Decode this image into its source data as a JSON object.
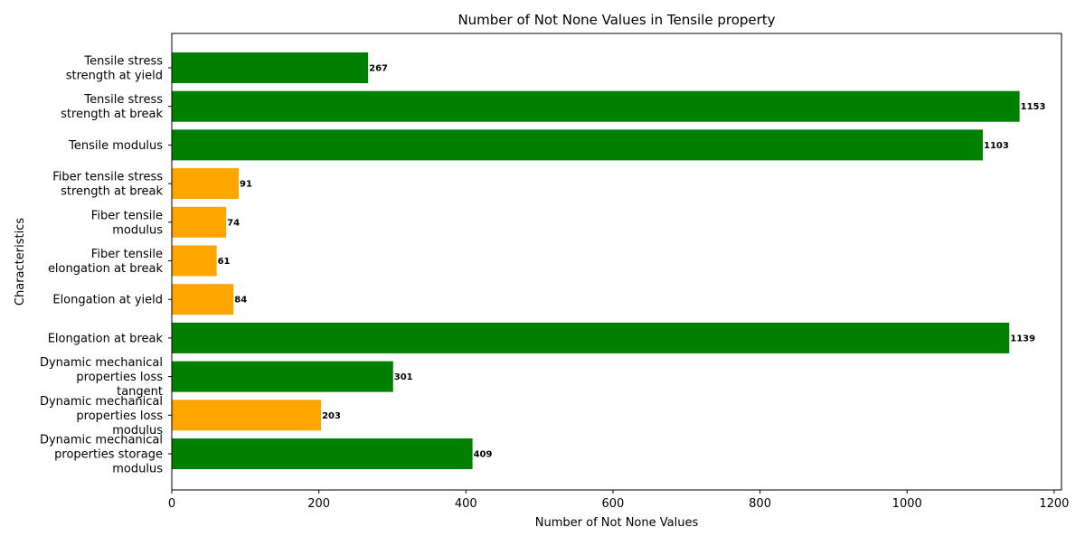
{
  "chart_data": {
    "type": "bar",
    "orientation": "horizontal",
    "title": "Number of Not None Values in Tensile property",
    "xlabel": "Number of Not None Values",
    "ylabel": "Characteristics",
    "xlim": [
      0,
      1210
    ],
    "x_ticks": [
      0,
      200,
      400,
      600,
      800,
      1000,
      1200
    ],
    "grid": false,
    "categories": [
      "Tensile stress\nstrength at yield",
      "Tensile stress\nstrength at break",
      "Tensile modulus",
      "Fiber tensile stress\nstrength at break",
      "Fiber tensile\nmodulus",
      "Fiber tensile\nelongation at break",
      "Elongation at yield",
      "Elongation at break",
      "Dynamic mechanical\nproperties loss\ntangent",
      "Dynamic mechanical\nproperties loss\nmodulus",
      "Dynamic mechanical\nproperties storage\nmodulus"
    ],
    "values": [
      267,
      1153,
      1103,
      91,
      74,
      61,
      84,
      1139,
      301,
      203,
      409
    ],
    "bar_colors": [
      "#008000",
      "#008000",
      "#008000",
      "#FFA500",
      "#FFA500",
      "#FFA500",
      "#FFA500",
      "#008000",
      "#008000",
      "#FFA500",
      "#008000"
    ]
  }
}
